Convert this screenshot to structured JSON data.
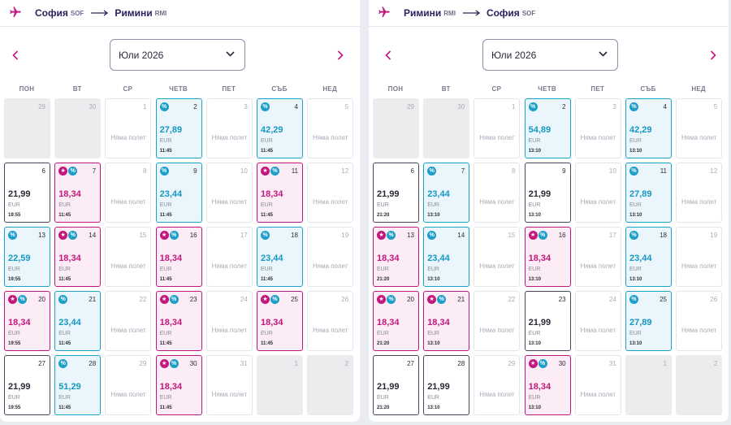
{
  "weekdays": [
    "ПОН",
    "ВТ",
    "СР",
    "ЧЕТВ",
    "ПЕТ",
    "СЪБ",
    "НЕД"
  ],
  "no_flights_label": "Няма полет",
  "currency": "EUR",
  "colors": {
    "discount": "#1aa3c7",
    "promo": "#c2187e",
    "brand": "#27235e"
  },
  "icons": {
    "route": "airplane-icon",
    "route_arrow": "long-arrow-right-icon",
    "prev": "chevron-left-icon",
    "next": "chevron-right-icon",
    "dropdown": "chevron-down-icon",
    "discount_badge": "percent-badge-icon",
    "promo_badge": "star-badge-icon"
  },
  "outbound": {
    "from": "София",
    "from_code": "SOF",
    "to": "Римини",
    "to_code": "RMI",
    "month": "Юли 2026",
    "days": [
      {
        "d": "29",
        "kind": "empty"
      },
      {
        "d": "30",
        "kind": "empty"
      },
      {
        "d": "1",
        "kind": "none"
      },
      {
        "d": "2",
        "kind": "disc",
        "price": "27,89",
        "time": "11:45"
      },
      {
        "d": "3",
        "kind": "none"
      },
      {
        "d": "4",
        "kind": "disc",
        "price": "42,29",
        "time": "11:45"
      },
      {
        "d": "5",
        "kind": "none"
      },
      {
        "d": "6",
        "kind": "normal",
        "price": "21,99",
        "time": "19:55"
      },
      {
        "d": "7",
        "kind": "promo",
        "price": "18,34",
        "time": "11:45"
      },
      {
        "d": "8",
        "kind": "none"
      },
      {
        "d": "9",
        "kind": "disc",
        "price": "23,44",
        "time": "11:45"
      },
      {
        "d": "10",
        "kind": "none"
      },
      {
        "d": "11",
        "kind": "promo",
        "price": "18,34",
        "time": "11:45"
      },
      {
        "d": "12",
        "kind": "none"
      },
      {
        "d": "13",
        "kind": "disc",
        "price": "22,59",
        "time": "19:55"
      },
      {
        "d": "14",
        "kind": "promo",
        "price": "18,34",
        "time": "11:45"
      },
      {
        "d": "15",
        "kind": "none"
      },
      {
        "d": "16",
        "kind": "promo",
        "price": "18,34",
        "time": "11:45"
      },
      {
        "d": "17",
        "kind": "none"
      },
      {
        "d": "18",
        "kind": "disc",
        "price": "23,44",
        "time": "11:45"
      },
      {
        "d": "19",
        "kind": "none"
      },
      {
        "d": "20",
        "kind": "promo",
        "price": "18,34",
        "time": "19:55"
      },
      {
        "d": "21",
        "kind": "disc",
        "price": "23,44",
        "time": "11:45"
      },
      {
        "d": "22",
        "kind": "none"
      },
      {
        "d": "23",
        "kind": "promo",
        "price": "18,34",
        "time": "11:45"
      },
      {
        "d": "24",
        "kind": "none"
      },
      {
        "d": "25",
        "kind": "promo",
        "price": "18,34",
        "time": "11:45"
      },
      {
        "d": "26",
        "kind": "none"
      },
      {
        "d": "27",
        "kind": "normal",
        "price": "21,99",
        "time": "19:55"
      },
      {
        "d": "28",
        "kind": "disc",
        "price": "51,29",
        "time": "11:45"
      },
      {
        "d": "29",
        "kind": "none"
      },
      {
        "d": "30",
        "kind": "promo",
        "price": "18,34",
        "time": "11:45"
      },
      {
        "d": "31",
        "kind": "none"
      },
      {
        "d": "1",
        "kind": "empty"
      },
      {
        "d": "2",
        "kind": "empty"
      }
    ]
  },
  "return": {
    "from": "Римини",
    "from_code": "RMI",
    "to": "София",
    "to_code": "SOF",
    "month": "Юли 2026",
    "days": [
      {
        "d": "29",
        "kind": "empty"
      },
      {
        "d": "30",
        "kind": "empty"
      },
      {
        "d": "1",
        "kind": "none"
      },
      {
        "d": "2",
        "kind": "disc",
        "price": "54,89",
        "time": "13:10"
      },
      {
        "d": "3",
        "kind": "none"
      },
      {
        "d": "4",
        "kind": "disc",
        "price": "42,29",
        "time": "13:10"
      },
      {
        "d": "5",
        "kind": "none"
      },
      {
        "d": "6",
        "kind": "normal",
        "price": "21,99",
        "time": "21:20"
      },
      {
        "d": "7",
        "kind": "disc",
        "price": "23,44",
        "time": "13:10"
      },
      {
        "d": "8",
        "kind": "none"
      },
      {
        "d": "9",
        "kind": "normal",
        "price": "21,99",
        "time": "13:10"
      },
      {
        "d": "10",
        "kind": "none"
      },
      {
        "d": "11",
        "kind": "disc",
        "price": "27,89",
        "time": "13:10"
      },
      {
        "d": "12",
        "kind": "none"
      },
      {
        "d": "13",
        "kind": "promo",
        "price": "18,34",
        "time": "21:20"
      },
      {
        "d": "14",
        "kind": "disc",
        "price": "23,44",
        "time": "13:10"
      },
      {
        "d": "15",
        "kind": "none"
      },
      {
        "d": "16",
        "kind": "promo",
        "price": "18,34",
        "time": "13:10"
      },
      {
        "d": "17",
        "kind": "none"
      },
      {
        "d": "18",
        "kind": "disc",
        "price": "23,44",
        "time": "13:10"
      },
      {
        "d": "19",
        "kind": "none"
      },
      {
        "d": "20",
        "kind": "promo",
        "price": "18,34",
        "time": "21:20"
      },
      {
        "d": "21",
        "kind": "promo",
        "price": "18,34",
        "time": "13:10"
      },
      {
        "d": "22",
        "kind": "none"
      },
      {
        "d": "23",
        "kind": "normal",
        "price": "21,99",
        "time": "13:10"
      },
      {
        "d": "24",
        "kind": "none"
      },
      {
        "d": "25",
        "kind": "disc",
        "price": "27,89",
        "time": "13:10"
      },
      {
        "d": "26",
        "kind": "none"
      },
      {
        "d": "27",
        "kind": "normal",
        "price": "21,99",
        "time": "21:20"
      },
      {
        "d": "28",
        "kind": "normal",
        "price": "21,99",
        "time": "13:10"
      },
      {
        "d": "29",
        "kind": "none"
      },
      {
        "d": "30",
        "kind": "promo",
        "price": "18,34",
        "time": "13:10"
      },
      {
        "d": "31",
        "kind": "none"
      },
      {
        "d": "1",
        "kind": "empty"
      },
      {
        "d": "2",
        "kind": "empty"
      }
    ]
  }
}
